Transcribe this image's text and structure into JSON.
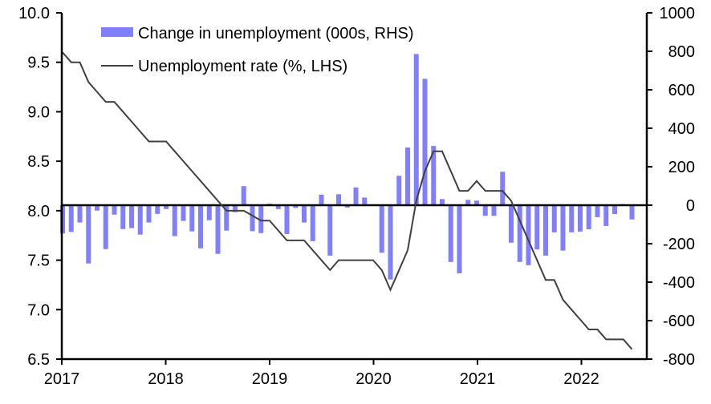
{
  "chart_data": {
    "type": "bar+line",
    "title": "",
    "colors": {
      "bars": "#8080ff",
      "line": "#404040",
      "axis": "#000000"
    },
    "x_start": "2017-01",
    "x_tick_labels": [
      "2017",
      "2018",
      "2019",
      "2020",
      "2021",
      "2022"
    ],
    "left_axis": {
      "label": "",
      "range": [
        6.5,
        10.0
      ],
      "ticks": [
        "6.5",
        "7.0",
        "7.5",
        "8.0",
        "8.5",
        "9.0",
        "9.5",
        "10.0"
      ]
    },
    "right_axis": {
      "label": "",
      "range": [
        -800,
        1000
      ],
      "ticks": [
        "-800",
        "-600",
        "-400",
        "-200",
        "0",
        "200",
        "400",
        "600",
        "800",
        "1000"
      ]
    },
    "legend": {
      "placement": "top-left",
      "entries": [
        "Change in unemployment (000s, RHS)",
        "Unemployment rate (%, LHS)"
      ]
    },
    "series": [
      {
        "name": "Change in unemployment (000s, RHS)",
        "kind": "bar",
        "axis": "right",
        "values": [
          -147,
          -139,
          -90,
          -303,
          -28,
          -228,
          -49,
          -124,
          -119,
          -153,
          -90,
          -45,
          -20,
          -161,
          -82,
          -136,
          -224,
          -78,
          -253,
          -132,
          -36,
          99,
          -135,
          -145,
          8,
          -20,
          -150,
          -14,
          -90,
          -187,
          55,
          -262,
          57,
          -12,
          92,
          40,
          0,
          -247,
          -386,
          153,
          300,
          786,
          657,
          308,
          32,
          -295,
          -354,
          28,
          24,
          -55,
          -55,
          174,
          -195,
          -295,
          -312,
          -230,
          -262,
          -141,
          -236,
          -141,
          -137,
          -125,
          -62,
          -108,
          -46,
          6,
          -74
        ]
      },
      {
        "name": "Unemployment rate (%, LHS)",
        "kind": "line",
        "axis": "left",
        "values": [
          9.6,
          9.5,
          9.5,
          9.3,
          9.2,
          9.1,
          9.1,
          9.0,
          8.9,
          8.8,
          8.7,
          8.7,
          8.7,
          8.6,
          8.5,
          8.4,
          8.3,
          8.2,
          8.1,
          8.0,
          8.0,
          8.0,
          7.95,
          7.9,
          7.9,
          7.8,
          7.7,
          7.7,
          7.7,
          7.6,
          7.5,
          7.4,
          7.5,
          7.5,
          7.5,
          7.5,
          7.5,
          7.4,
          7.2,
          7.4,
          7.6,
          8.1,
          8.4,
          8.6,
          8.6,
          8.4,
          8.2,
          8.2,
          8.3,
          8.2,
          8.2,
          8.2,
          8.1,
          7.9,
          7.7,
          7.5,
          7.3,
          7.3,
          7.1,
          7.0,
          6.9,
          6.8,
          6.8,
          6.7,
          6.7,
          6.7,
          6.6
        ]
      }
    ]
  }
}
